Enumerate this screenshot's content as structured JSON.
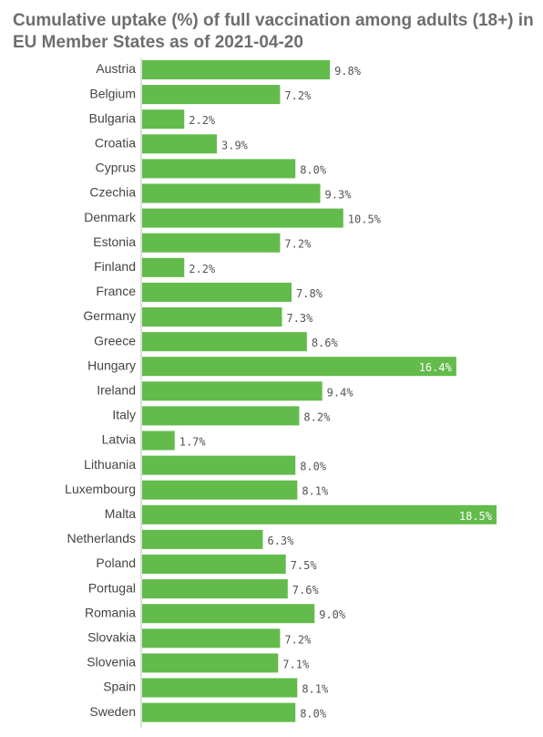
{
  "chart_data": {
    "type": "bar",
    "orientation": "horizontal",
    "title": "Cumulative uptake (%) of full vaccination among adults (18+) in EU Member States as of 2021-04-20",
    "categories": [
      "Austria",
      "Belgium",
      "Bulgaria",
      "Croatia",
      "Cyprus",
      "Czechia",
      "Denmark",
      "Estonia",
      "Finland",
      "France",
      "Germany",
      "Greece",
      "Hungary",
      "Ireland",
      "Italy",
      "Latvia",
      "Lithuania",
      "Luxembourg",
      "Malta",
      "Netherlands",
      "Poland",
      "Portugal",
      "Romania",
      "Slovakia",
      "Slovenia",
      "Spain",
      "Sweden"
    ],
    "values": [
      9.8,
      7.2,
      2.2,
      3.9,
      8.0,
      9.3,
      10.5,
      7.2,
      2.2,
      7.8,
      7.3,
      8.6,
      16.4,
      9.4,
      8.2,
      1.7,
      8.0,
      8.1,
      18.5,
      6.3,
      7.5,
      7.6,
      9.0,
      7.2,
      7.1,
      8.1,
      8.0
    ],
    "value_labels": [
      "9.8%",
      "7.2%",
      "2.2%",
      "3.9%",
      "8.0%",
      "9.3%",
      "10.5%",
      "7.2%",
      "2.2%",
      "7.8%",
      "7.3%",
      "8.6%",
      "16.4%",
      "9.4%",
      "8.2%",
      "1.7%",
      "8.0%",
      "8.1%",
      "18.5%",
      "6.3%",
      "7.5%",
      "7.6%",
      "9.0%",
      "7.2%",
      "7.1%",
      "8.1%",
      "8.0%"
    ],
    "xlim": [
      0,
      18.5
    ],
    "bar_color": "#62bb4b",
    "grid": false,
    "legend": "none"
  }
}
